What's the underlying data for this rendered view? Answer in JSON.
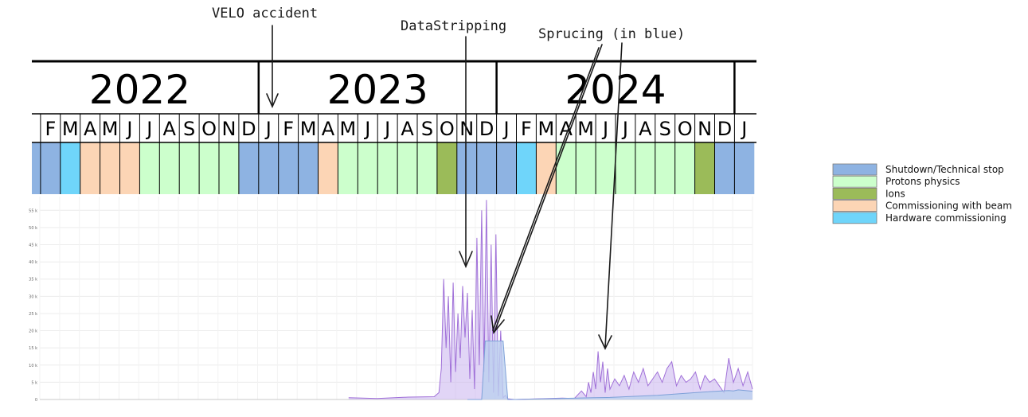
{
  "annotations": [
    {
      "id": "velo",
      "text": "VELO accident"
    },
    {
      "id": "stripping",
      "text": "DataStripping"
    },
    {
      "id": "sprucing",
      "text": "Sprucing (in blue)"
    }
  ],
  "timeline": {
    "years": [
      "2022",
      "2023",
      "2024"
    ],
    "months": [
      "J",
      "F",
      "M",
      "A",
      "M",
      "J",
      "J",
      "A",
      "S",
      "O",
      "N",
      "D",
      "J",
      "F",
      "M",
      "A",
      "M",
      "J",
      "J",
      "A",
      "S",
      "O",
      "N",
      "D",
      "J",
      "F",
      "M",
      "A",
      "M",
      "J",
      "J",
      "A",
      "S",
      "O",
      "N",
      "D",
      "J"
    ],
    "phases": [
      "shutdown",
      "shutdown",
      "hardware",
      "commissioning",
      "commissioning",
      "commissioning",
      "protons",
      "protons",
      "protons",
      "protons",
      "protons",
      "shutdown",
      "shutdown",
      "shutdown",
      "shutdown",
      "commissioning",
      "protons",
      "protons",
      "protons",
      "protons",
      "protons",
      "ions",
      "shutdown",
      "shutdown",
      "shutdown",
      "hardware",
      "commissioning",
      "protons",
      "protons",
      "protons",
      "protons",
      "protons",
      "protons",
      "protons",
      "ions",
      "shutdown",
      "shutdown"
    ]
  },
  "legend": [
    {
      "key": "shutdown",
      "label": "Shutdown/Technical stop",
      "color": "#8eb3e2"
    },
    {
      "key": "protons",
      "label": "Protons physics",
      "color": "#ccffcc"
    },
    {
      "key": "ions",
      "label": "Ions",
      "color": "#9bbb59"
    },
    {
      "key": "commissioning",
      "label": "Commissioning with beam",
      "color": "#fcd5b5"
    },
    {
      "key": "hardware",
      "label": "Hardware commissioning",
      "color": "#6fd5fa"
    }
  ],
  "chart_data": {
    "type": "area",
    "x_start": "2022-01",
    "x_end": "2025-01",
    "y_ticks": [
      "0",
      "5 k",
      "10 k",
      "15 k",
      "20 k",
      "25 k",
      "30 k",
      "35 k",
      "40 k",
      "45 k",
      "50 k",
      "55 k"
    ],
    "ylim": [
      0,
      59000
    ],
    "grid": true,
    "series": [
      {
        "color": "#a070d8",
        "fill": "#c9b3ee",
        "x": [
          2023.3,
          2023.42,
          2023.55,
          2023.66,
          2023.68,
          2023.69,
          2023.7,
          2023.71,
          2023.72,
          2023.73,
          2023.74,
          2023.75,
          2023.76,
          2023.77,
          2023.78,
          2023.79,
          2023.8,
          2023.81,
          2023.82,
          2023.83,
          2023.84,
          2023.85,
          2023.86,
          2023.87,
          2023.88,
          2023.89,
          2023.9,
          2023.91,
          2023.92,
          2023.93,
          2023.94,
          2023.95,
          2023.96,
          2023.97,
          2024.0,
          2024.1,
          2024.2,
          2024.25,
          2024.28,
          2024.3,
          2024.31,
          2024.32,
          2024.33,
          2024.34,
          2024.35,
          2024.36,
          2024.37,
          2024.38,
          2024.39,
          2024.4,
          2024.42,
          2024.44,
          2024.46,
          2024.48,
          2024.5,
          2024.52,
          2024.54,
          2024.56,
          2024.58,
          2024.6,
          2024.62,
          2024.64,
          2024.66,
          2024.68,
          2024.7,
          2024.72,
          2024.74,
          2024.76,
          2024.78,
          2024.8,
          2024.82,
          2024.84,
          2024.86,
          2024.88,
          2024.9,
          2024.92,
          2024.94,
          2024.96,
          2024.98,
          2025.0
        ],
        "y": [
          500,
          300,
          700,
          800,
          2000,
          9000,
          35000,
          15000,
          30000,
          5000,
          34000,
          8000,
          25000,
          12000,
          33000,
          18000,
          31000,
          6000,
          26000,
          3000,
          47000,
          10000,
          55000,
          8000,
          58000,
          5000,
          45000,
          2000,
          48000,
          1000,
          20000,
          500,
          1200,
          200,
          0,
          200,
          400,
          300,
          2500,
          800,
          5000,
          2000,
          8000,
          3000,
          14000,
          5000,
          11000,
          2000,
          9000,
          3000,
          6000,
          4000,
          7000,
          3000,
          8000,
          5000,
          9000,
          4000,
          6000,
          8000,
          5000,
          9000,
          11000,
          4000,
          7000,
          5000,
          6000,
          8000,
          3000,
          7000,
          5000,
          6000,
          4000,
          2000,
          12000,
          5000,
          9000,
          4000,
          8000,
          3000
        ]
      },
      {
        "color": "#7ea0d8",
        "fill": "#bcd0ef",
        "x": [
          2023.8,
          2023.86,
          2023.875,
          2023.88,
          2023.95,
          2023.97,
          2024.0,
          2024.33,
          2024.4,
          2024.6,
          2024.8,
          2024.9,
          2024.92,
          2024.94,
          2025.0
        ],
        "y": [
          0,
          0,
          17000,
          17000,
          17000,
          0,
          0,
          500,
          600,
          1200,
          2200,
          2600,
          2500,
          2800,
          2400
        ]
      }
    ]
  }
}
